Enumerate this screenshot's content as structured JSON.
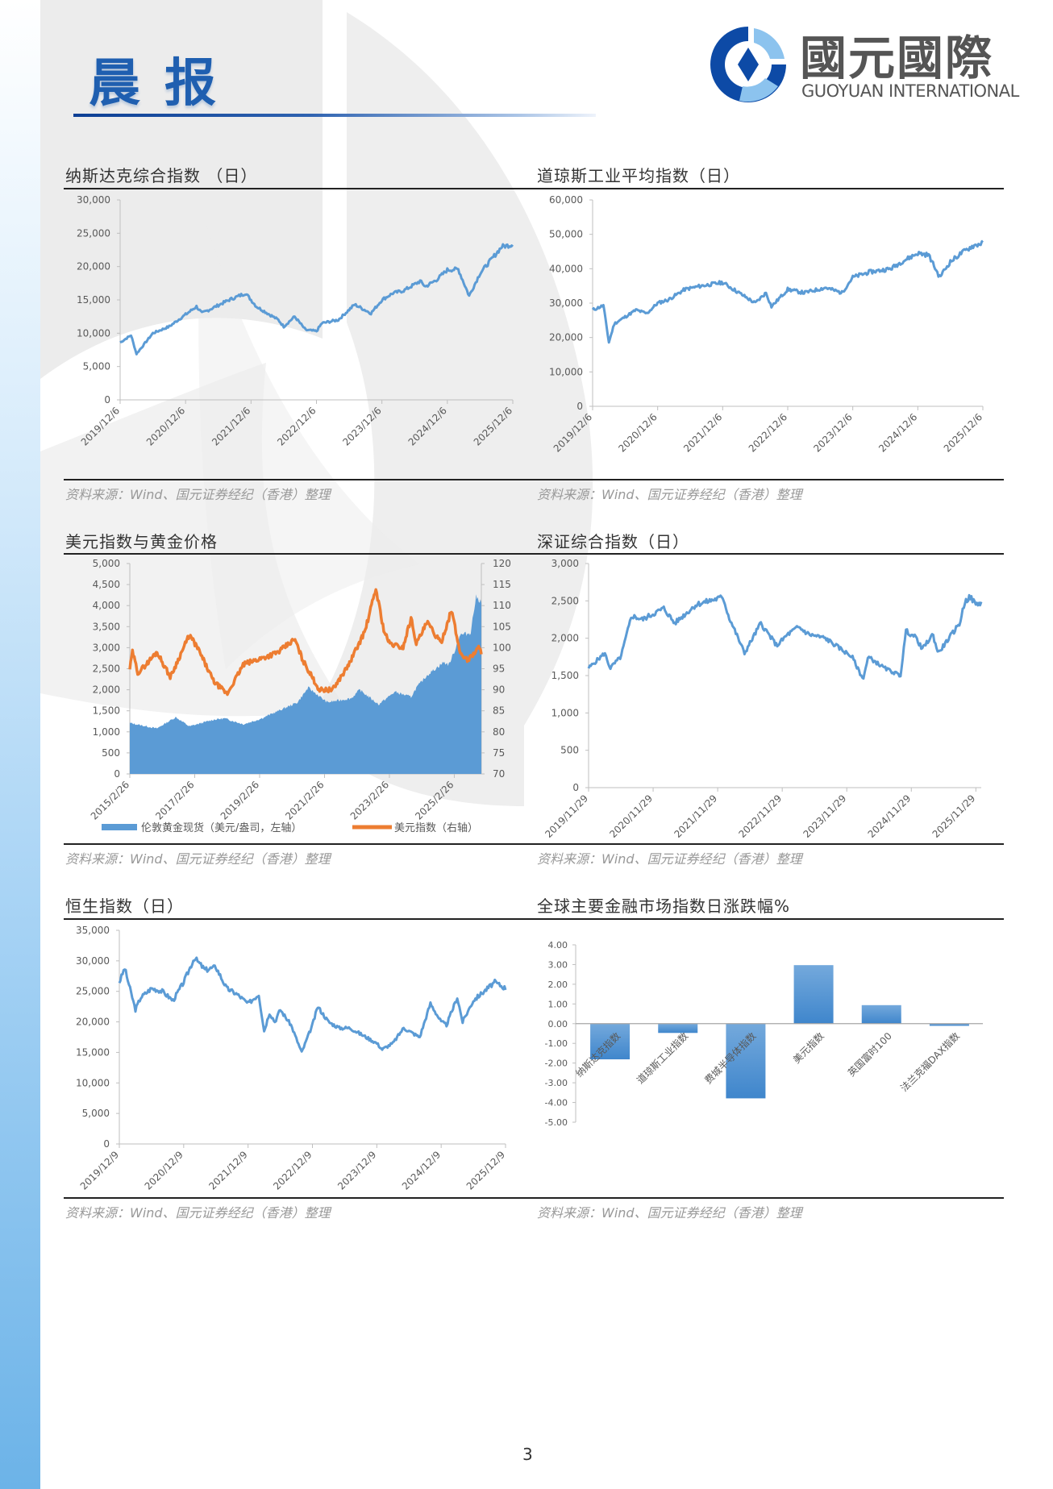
{
  "header": {
    "report_title": "晨报",
    "logo_cn": "國元國際",
    "logo_en": "GUOYUAN INTERNATIONAL",
    "accent": "#1f5fb0"
  },
  "panels": [
    {
      "title": "纳斯达克综合指数 （日）",
      "source": "资料来源：Wind、国元证券经纪（香港）整理"
    },
    {
      "title": "道琼斯工业平均指数（日）",
      "source": "资料来源：Wind、国元证券经纪（香港）整理"
    },
    {
      "title": "美元指数与黄金价格",
      "source": "资料来源：Wind、国元证券经纪（香港）整理"
    },
    {
      "title": "深证综合指数（日）",
      "source": "资料来源：Wind、国元证券经纪（香港）整理"
    },
    {
      "title": "恒生指数（日）",
      "source": "资料来源：Wind、国元证券经纪（香港）整理"
    },
    {
      "title": "全球主要金融市场指数日涨跌幅%",
      "source": "资料来源：Wind、国元证券经纪（香港）整理"
    }
  ],
  "page_number": "3",
  "chart_data": [
    {
      "id": "nasdaq",
      "type": "line",
      "color": "#5b9bd5",
      "ylim": [
        0,
        30000
      ],
      "yticks": [
        "0",
        "5,000",
        "10,000",
        "15,000",
        "20,000",
        "25,000",
        "30,000"
      ],
      "xlim": [
        "2019-12",
        "2025-12"
      ],
      "xticks": [
        "2019/12/6",
        "2020/12/6",
        "2021/12/6",
        "2022/12/6",
        "2023/12/6",
        "2024/12/6",
        "2025/12/6"
      ],
      "x": [
        "2019-12",
        "2020-02",
        "2020-03",
        "2020-06",
        "2020-09",
        "2020-12",
        "2021-02",
        "2021-03",
        "2021-08",
        "2021-11",
        "2022-01",
        "2022-05",
        "2022-06",
        "2022-08",
        "2022-10",
        "2022-12",
        "2023-01",
        "2023-04",
        "2023-07",
        "2023-10",
        "2023-12",
        "2024-02",
        "2024-04",
        "2024-07",
        "2024-08",
        "2024-10",
        "2024-12",
        "2025-02",
        "2025-04",
        "2025-06",
        "2025-08",
        "2025-10",
        "2025-12"
      ],
      "y": [
        8600,
        9700,
        6900,
        10000,
        11000,
        12800,
        14000,
        13000,
        15000,
        16000,
        14000,
        12000,
        11000,
        12500,
        10500,
        10300,
        11500,
        12000,
        14300,
        13000,
        15000,
        16000,
        16400,
        17800,
        17000,
        18000,
        19500,
        19600,
        15600,
        19000,
        21000,
        23000,
        23300
      ]
    },
    {
      "id": "dow",
      "type": "line",
      "color": "#5b9bd5",
      "ylim": [
        0,
        60000
      ],
      "yticks": [
        "0",
        "10,000",
        "20,000",
        "30,000",
        "40,000",
        "50,000",
        "60,000"
      ],
      "xlim": [
        "2019-12",
        "2025-12"
      ],
      "xticks": [
        "2019/12/6",
        "2020/12/6",
        "2021/12/6",
        "2022/12/6",
        "2023/12/6",
        "2024/12/6",
        "2025/12/6"
      ],
      "x": [
        "2019-12",
        "2020-02",
        "2020-03",
        "2020-04",
        "2020-06",
        "2020-08",
        "2020-10",
        "2020-12",
        "2021-02",
        "2021-05",
        "2021-08",
        "2021-12",
        "2022-03",
        "2022-06",
        "2022-08",
        "2022-09",
        "2022-12",
        "2023-03",
        "2023-07",
        "2023-10",
        "2023-12",
        "2024-03",
        "2024-07",
        "2024-09",
        "2024-12",
        "2025-02",
        "2025-04",
        "2025-06",
        "2025-08",
        "2025-10",
        "2025-12"
      ],
      "y": [
        28000,
        29300,
        18600,
        24000,
        26000,
        28000,
        27000,
        30000,
        31000,
        34000,
        35000,
        36000,
        33000,
        30000,
        33000,
        29000,
        34000,
        33000,
        34500,
        33000,
        37500,
        39000,
        40000,
        42000,
        44500,
        44000,
        37600,
        42000,
        44500,
        46500,
        47500
      ]
    },
    {
      "id": "gold-usd",
      "type": "area+line",
      "xlim": [
        "2015-02",
        "2025-12"
      ],
      "xticks": [
        "2015/2/26",
        "2017/2/26",
        "2019/2/26",
        "2021/2/26",
        "2023/2/26",
        "2025/2/26"
      ],
      "left_axis": {
        "ylim": [
          0,
          5000
        ],
        "yticks": [
          "0",
          "500",
          "1,000",
          "1,500",
          "2,000",
          "2,500",
          "3,000",
          "3,500",
          "4,000",
          "4,500",
          "5,000"
        ]
      },
      "right_axis": {
        "ylim": [
          70,
          120
        ],
        "yticks": [
          "70",
          "75",
          "80",
          "85",
          "90",
          "95",
          "100",
          "105",
          "110",
          "115",
          "120"
        ]
      },
      "legend_position": "bottom",
      "series": [
        {
          "name": "伦敦黄金现货（美元/盎司，左轴）",
          "type": "area",
          "axis": "left",
          "color": "#5b9bd5",
          "x": [
            "2015-02",
            "2015-12",
            "2016-07",
            "2016-12",
            "2017-09",
            "2018-01",
            "2018-08",
            "2019-02",
            "2019-09",
            "2020-04",
            "2020-08",
            "2021-03",
            "2021-12",
            "2022-03",
            "2022-10",
            "2023-04",
            "2023-10",
            "2023-12",
            "2024-04",
            "2024-10",
            "2024-12",
            "2025-02",
            "2025-04",
            "2025-08",
            "2025-10",
            "2025-12"
          ],
          "y": [
            1210,
            1080,
            1350,
            1130,
            1290,
            1320,
            1180,
            1300,
            1500,
            1700,
            2050,
            1700,
            1800,
            2000,
            1650,
            1950,
            1830,
            2050,
            2350,
            2650,
            2600,
            2900,
            3300,
            3350,
            4200,
            4100
          ]
        },
        {
          "name": "美元指数（右轴）",
          "type": "line",
          "axis": "right",
          "color": "#ed7d31",
          "x": [
            "2015-02",
            "2015-03",
            "2015-05",
            "2015-08",
            "2015-12",
            "2016-05",
            "2016-12",
            "2017-03",
            "2017-09",
            "2018-02",
            "2018-08",
            "2019-05",
            "2019-09",
            "2020-03",
            "2020-06",
            "2020-12",
            "2021-05",
            "2021-11",
            "2022-05",
            "2022-09",
            "2022-12",
            "2023-02",
            "2023-07",
            "2023-10",
            "2023-12",
            "2024-04",
            "2024-09",
            "2025-01",
            "2025-04",
            "2025-07",
            "2025-11",
            "2025-12"
          ],
          "y": [
            95,
            99,
            94,
            96,
            99,
            93,
            103,
            100,
            92,
            89,
            96,
            98,
            99,
            102,
            97,
            90,
            90,
            96,
            104,
            114,
            104,
            101,
            100,
            107,
            101,
            106,
            101,
            109,
            99,
            97,
            100,
            99
          ]
        }
      ]
    },
    {
      "id": "szcomp",
      "type": "line",
      "color": "#5b9bd5",
      "ylim": [
        0,
        3000
      ],
      "yticks": [
        "0",
        "500",
        "1,000",
        "1,500",
        "2,000",
        "2,500",
        "3,000"
      ],
      "xlim": [
        "2019-11",
        "2025-12"
      ],
      "xticks": [
        "2019/11/29",
        "2020/11/29",
        "2021/11/29",
        "2022/11/29",
        "2023/11/29",
        "2024/11/29",
        "2025/11/29"
      ],
      "x": [
        "2019-11",
        "2020-02",
        "2020-03",
        "2020-05",
        "2020-07",
        "2020-09",
        "2021-01",
        "2021-03",
        "2021-07",
        "2021-12",
        "2022-01",
        "2022-04",
        "2022-07",
        "2022-10",
        "2022-12",
        "2023-02",
        "2023-04",
        "2023-07",
        "2023-10",
        "2023-12",
        "2024-02",
        "2024-03",
        "2024-06",
        "2024-09",
        "2024-10",
        "2024-12",
        "2025-01",
        "2025-03",
        "2025-04",
        "2025-06",
        "2025-08",
        "2025-09",
        "2025-10",
        "2025-11",
        "2025-12"
      ],
      "y": [
        1600,
        1800,
        1600,
        1750,
        2300,
        2250,
        2400,
        2200,
        2450,
        2550,
        2300,
        1800,
        2200,
        1900,
        2050,
        2150,
        2050,
        2000,
        1850,
        1750,
        1450,
        1750,
        1600,
        1500,
        2100,
        2000,
        1850,
        2050,
        1800,
        2000,
        2200,
        2500,
        2550,
        2450,
        2480
      ]
    },
    {
      "id": "hsi",
      "type": "line",
      "color": "#5b9bd5",
      "ylim": [
        0,
        35000
      ],
      "yticks": [
        "0",
        "5,000",
        "10,000",
        "15,000",
        "20,000",
        "25,000",
        "30,000",
        "35,000"
      ],
      "xlim": [
        "2019-12",
        "2025-12"
      ],
      "xticks": [
        "2019/12/9",
        "2020/12/9",
        "2021/12/9",
        "2022/12/9",
        "2023/12/9",
        "2024/12/9",
        "2025/12/9"
      ],
      "x": [
        "2019-12",
        "2020-01",
        "2020-03",
        "2020-04",
        "2020-06",
        "2020-08",
        "2020-10",
        "2020-12",
        "2021-02",
        "2021-04",
        "2021-06",
        "2021-08",
        "2021-10",
        "2021-12",
        "2022-02",
        "2022-03",
        "2022-04",
        "2022-05",
        "2022-06",
        "2022-08",
        "2022-10",
        "2022-12",
        "2023-01",
        "2023-03",
        "2023-05",
        "2023-07",
        "2023-10",
        "2023-12",
        "2024-01",
        "2024-03",
        "2024-05",
        "2024-08",
        "2024-10",
        "2024-12",
        "2025-01",
        "2025-03",
        "2025-04",
        "2025-06",
        "2025-08",
        "2025-10",
        "2025-12"
      ],
      "y": [
        26500,
        28800,
        22000,
        24000,
        25500,
        25000,
        23500,
        26500,
        30500,
        28500,
        29000,
        25500,
        24500,
        23000,
        24500,
        18500,
        21500,
        20000,
        22000,
        19500,
        15000,
        19500,
        22500,
        20000,
        19000,
        19000,
        17500,
        16500,
        15500,
        16500,
        19000,
        17500,
        23000,
        20000,
        19500,
        24000,
        20000,
        23500,
        25000,
        26500,
        25500
      ]
    },
    {
      "id": "global-change",
      "type": "bar",
      "color": "#5b9bd5",
      "ylim": [
        -5,
        4
      ],
      "yticks": [
        "-5.00",
        "-4.00",
        "-3.00",
        "-2.00",
        "-1.00",
        "0.00",
        "1.00",
        "2.00",
        "3.00",
        "4.00"
      ],
      "categories": [
        "纳斯达克指数",
        "道琼斯工业指数",
        "费城半导体指数",
        "美元指数",
        "英国富时100",
        "法兰克福DAX指数"
      ],
      "values": [
        -1.81,
        -0.47,
        -3.79,
        2.97,
        0.94,
        -0.11
      ]
    }
  ]
}
